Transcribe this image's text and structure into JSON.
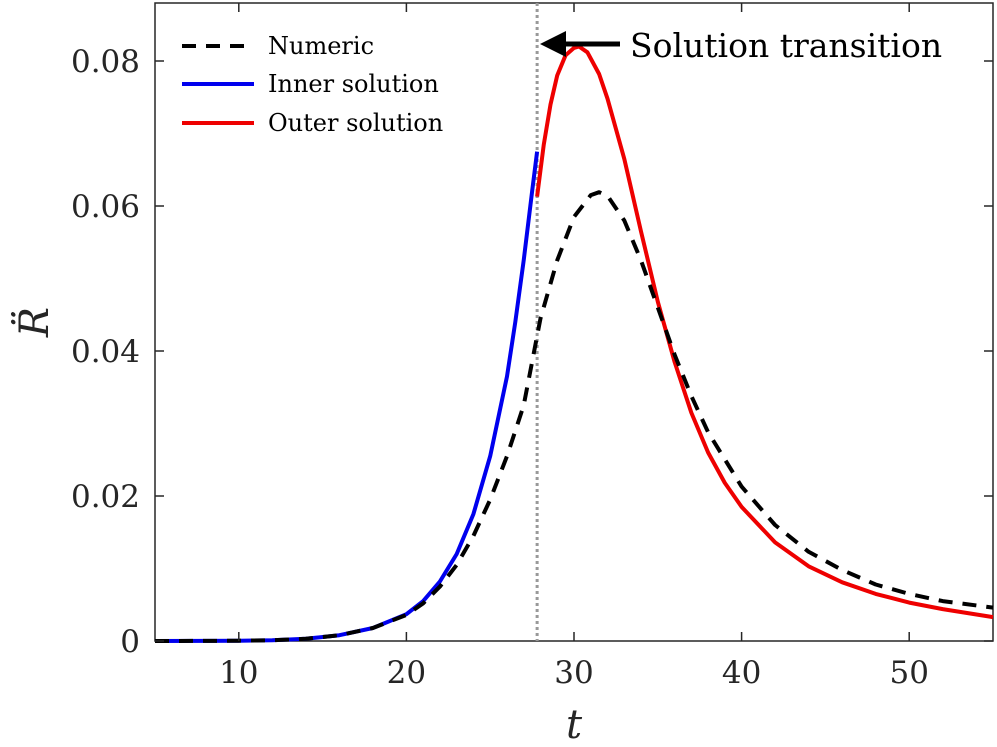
{
  "chart_data": {
    "type": "line",
    "xlabel": "t",
    "ylabel": "R̈",
    "xlim": [
      5,
      55
    ],
    "ylim": [
      0,
      0.088
    ],
    "xticks": [
      10,
      20,
      30,
      40,
      50
    ],
    "xtick_labels": [
      "10",
      "20",
      "30",
      "40",
      "50"
    ],
    "yticks": [
      0,
      0.02,
      0.04,
      0.06,
      0.08
    ],
    "ytick_labels": [
      "0",
      "0.02",
      "0.04",
      "0.06",
      "0.08"
    ],
    "grid": false,
    "legend_position": "top-left",
    "transition_t": 27.8,
    "annotation": "Solution transition",
    "series": [
      {
        "name": "Numeric",
        "color": "#000000",
        "style": "dashed",
        "x": [
          5,
          8,
          10,
          12,
          14,
          16,
          18,
          20,
          21,
          22,
          23,
          24,
          25,
          26,
          27,
          28,
          29,
          30,
          31,
          31.5,
          32,
          33,
          34,
          35,
          36,
          37,
          38,
          40,
          42,
          44,
          46,
          48,
          50,
          52,
          55
        ],
        "y": [
          0,
          1e-05,
          4e-05,
          0.0001,
          0.0003,
          0.0008,
          0.0018,
          0.0036,
          0.0052,
          0.0075,
          0.0105,
          0.0145,
          0.0195,
          0.0255,
          0.0325,
          0.0445,
          0.0525,
          0.0585,
          0.0615,
          0.0619,
          0.0614,
          0.058,
          0.0525,
          0.046,
          0.0395,
          0.0338,
          0.0288,
          0.0213,
          0.016,
          0.0123,
          0.0098,
          0.0078,
          0.0065,
          0.0055,
          0.0046
        ]
      },
      {
        "name": "Inner solution",
        "color": "#0000ee",
        "style": "solid",
        "x": [
          5,
          8,
          10,
          12,
          14,
          16,
          18,
          20,
          21,
          22,
          23,
          24,
          25,
          26,
          26.5,
          27,
          27.5,
          27.8
        ],
        "y": [
          0,
          1e-05,
          4e-05,
          0.0001,
          0.0003,
          0.0008,
          0.0018,
          0.0037,
          0.0055,
          0.0082,
          0.012,
          0.0175,
          0.0255,
          0.0365,
          0.044,
          0.0525,
          0.062,
          0.0675
        ]
      },
      {
        "name": "Outer solution",
        "color": "#ee0000",
        "style": "solid",
        "x": [
          27.8,
          28.2,
          28.6,
          29,
          29.5,
          30,
          30.3,
          30.8,
          31.5,
          32,
          33,
          34,
          35,
          36,
          37,
          38,
          39,
          40,
          42,
          44,
          46,
          48,
          50,
          52,
          55
        ],
        "y": [
          0.0613,
          0.0685,
          0.074,
          0.078,
          0.0808,
          0.0818,
          0.082,
          0.0812,
          0.0782,
          0.0748,
          0.0665,
          0.0565,
          0.0468,
          0.0385,
          0.0315,
          0.026,
          0.0218,
          0.0185,
          0.0136,
          0.0103,
          0.0081,
          0.0065,
          0.0053,
          0.0044,
          0.0033
        ]
      }
    ]
  }
}
